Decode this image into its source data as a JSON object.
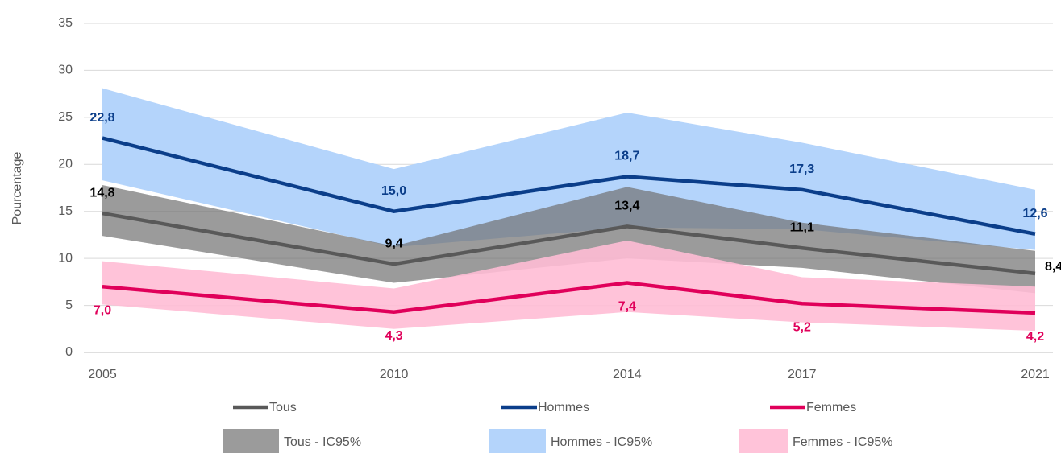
{
  "chart_data": {
    "type": "line",
    "y_label": "Pourcentage",
    "x": [
      2005,
      2010,
      2014,
      2017,
      2021
    ],
    "xlim": [
      2005,
      2021
    ],
    "xticks": [
      2005,
      2010,
      2014,
      2017,
      2021
    ],
    "ylim": [
      0,
      35
    ],
    "yticks": [
      0,
      5,
      10,
      15,
      20,
      25,
      30,
      35
    ],
    "grid": true,
    "bands": [
      {
        "name": "Hommes - IC95%",
        "color": "#b4d4fb",
        "opacity": 1,
        "lower": [
          18.3,
          11.2,
          13.3,
          13.1,
          10.9
        ],
        "upper": [
          28.1,
          19.5,
          25.5,
          22.3,
          17.3
        ]
      },
      {
        "name": "Tous - IC95%",
        "color": "#707070",
        "opacity": 0.7,
        "lower": [
          12.4,
          7.4,
          10.0,
          9.0,
          6.3
        ],
        "upper": [
          17.8,
          11.3,
          17.6,
          13.8,
          10.8
        ]
      },
      {
        "name": "Femmes - IC95%",
        "color": "#ffbdd5",
        "opacity": 0.9,
        "lower": [
          5.1,
          2.5,
          4.3,
          3.2,
          2.3
        ],
        "upper": [
          9.7,
          6.8,
          11.9,
          8.0,
          7.0
        ]
      }
    ],
    "series": [
      {
        "name": "Tous",
        "color": "#595959",
        "values": [
          14.8,
          9.4,
          13.4,
          11.1,
          8.4
        ],
        "value_labels": [
          "14,8",
          "9,4",
          "13,4",
          "11,1",
          "8,4"
        ]
      },
      {
        "name": "Hommes",
        "color": "#0b3e8a",
        "values": [
          22.8,
          15.0,
          18.7,
          17.3,
          12.6
        ],
        "value_labels": [
          "22,8",
          "15,0",
          "18,7",
          "17,3",
          "12,6"
        ]
      },
      {
        "name": "Femmes",
        "color": "#e0005a",
        "values": [
          7.0,
          4.3,
          7.4,
          5.2,
          4.2
        ],
        "value_labels": [
          "7,0",
          "4,3",
          "7,4",
          "5,2",
          "4,2"
        ]
      }
    ]
  }
}
